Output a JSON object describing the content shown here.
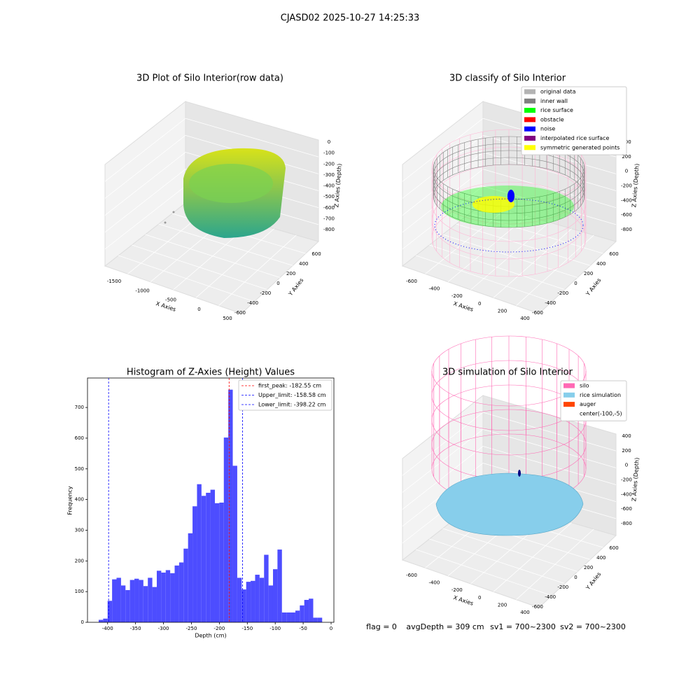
{
  "title": "CJASD02 2025-10-27 14:25:33",
  "footer": [
    "flag = 0",
    "avgDepth = 309 cm",
    "sv1 = 700~2300",
    "sv2 = 700~2300"
  ],
  "chart_data": [
    {
      "type": "scatter3d",
      "title": "3D Plot of Silo Interior(row data)",
      "xlabel": "X Axies",
      "ylabel": "Y Axies",
      "zlabel": "Z Axies (Depth)",
      "xticks": [
        -1500,
        -1000,
        -500,
        0,
        500
      ],
      "yticks": [
        -600,
        -400,
        -200,
        0,
        200,
        400,
        600
      ],
      "zticks": [
        0,
        -100,
        -200,
        -300,
        -400,
        -500,
        -600,
        -700,
        -800
      ]
    },
    {
      "type": "scatter3d",
      "title": "3D classify of Silo Interior",
      "xlabel": "X Axies",
      "ylabel": "Y Axies",
      "zlabel": "Z Axies (Depth)",
      "xticks": [
        -600,
        -400,
        -200,
        0,
        200,
        400
      ],
      "yticks": [
        -600,
        -400,
        -200,
        0,
        200,
        400,
        600
      ],
      "zticks": [
        400,
        200,
        0,
        -200,
        -400,
        -600,
        -800
      ],
      "legend": [
        {
          "name": "original data",
          "color": "#b3b3b3"
        },
        {
          "name": "inner wall",
          "color": "#808080"
        },
        {
          "name": "rice surface",
          "color": "#00ff00"
        },
        {
          "name": "obstacle",
          "color": "#ff0000"
        },
        {
          "name": "noise",
          "color": "#0000ff"
        },
        {
          "name": "interpolated rice surface",
          "color": "#800080"
        },
        {
          "name": "symmetric generated points",
          "color": "#ffff00"
        }
      ]
    },
    {
      "type": "histogram",
      "title": "Histogram of Z-Axies (Height) Values",
      "xlabel": "Depth (cm)",
      "ylabel": "Frequency",
      "color": "#4d4dff",
      "bins": [
        -416,
        -408,
        -400,
        -392,
        -384,
        -376,
        -368,
        -360,
        -352,
        -344,
        -336,
        -328,
        -320,
        -312,
        -304,
        -296,
        -288,
        -280,
        -272,
        -264,
        -256,
        -248,
        -240,
        -232,
        -224,
        -216,
        -208,
        -200,
        -192,
        -184,
        -176,
        -168,
        -160,
        -152,
        -144,
        -136,
        -128,
        -120,
        -112,
        -104,
        -96,
        -88,
        -80,
        -72,
        -64,
        -56,
        -48,
        -40,
        -32,
        -24,
        -16
      ],
      "values": [
        8,
        12,
        70,
        140,
        145,
        120,
        105,
        138,
        142,
        138,
        118,
        145,
        115,
        168,
        162,
        170,
        160,
        185,
        195,
        240,
        290,
        378,
        450,
        412,
        422,
        432,
        388,
        390,
        602,
        758,
        510,
        145,
        107,
        132,
        135,
        155,
        145,
        220,
        120,
        173,
        237,
        32,
        32,
        32,
        38,
        55,
        73,
        77,
        15,
        15
      ],
      "xlim": [
        -436,
        5
      ],
      "ylim": [
        0,
        796
      ],
      "xticks": [
        -400,
        -350,
        -300,
        -250,
        -200,
        -150,
        -100,
        -50,
        0
      ],
      "yticks": [
        0,
        100,
        200,
        300,
        400,
        500,
        600,
        700
      ],
      "lines": [
        {
          "name": "first_peak",
          "value": -182.55,
          "label": "first_peak: -182.55 cm",
          "color": "#ff0000"
        },
        {
          "name": "Upper_limit",
          "value": -158.58,
          "label": "Upper_limit: -158.58 cm",
          "color": "#0000ff"
        },
        {
          "name": "Lower_limit",
          "value": -398.22,
          "label": "Lower_limit: -398.22 cm",
          "color": "#0000ff"
        }
      ]
    },
    {
      "type": "surface3d",
      "title": "3D simulation of Silo Interior",
      "xlabel": "X Axies",
      "ylabel": "Y Axies",
      "zlabel": "Z Axies (Depth)",
      "xticks": [
        -600,
        -400,
        -200,
        0,
        200,
        400
      ],
      "yticks": [
        -600,
        -400,
        -200,
        0,
        200,
        400,
        600
      ],
      "zticks": [
        400,
        200,
        0,
        -200,
        -400,
        -600,
        -800
      ],
      "legend": [
        {
          "name": "silo",
          "color": "#ff69b4"
        },
        {
          "name": "rice simulation",
          "color": "#87ceeb"
        },
        {
          "name": "auger",
          "color": "#ff4500"
        },
        {
          "name": "center(-100,-5)",
          "color": "#ffffff"
        }
      ]
    }
  ]
}
